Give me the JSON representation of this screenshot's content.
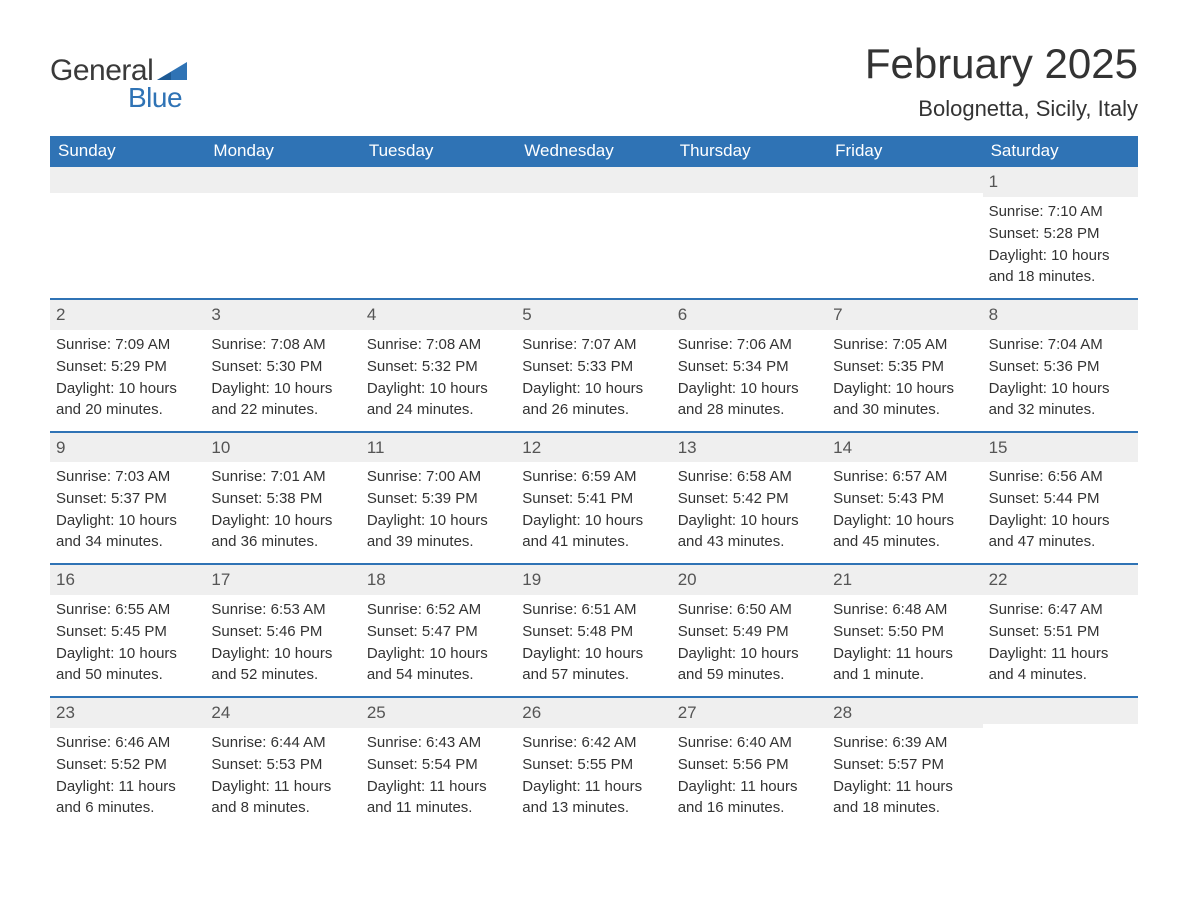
{
  "logo": {
    "text_general": "General",
    "text_blue": "Blue",
    "flag_color": "#2f73b5"
  },
  "header": {
    "month_title": "February 2025",
    "location": "Bolognetta, Sicily, Italy"
  },
  "colors": {
    "header_bg": "#2f73b5",
    "header_text": "#ffffff",
    "daynum_bg": "#efefef",
    "body_text": "#333333",
    "row_border": "#2f73b5"
  },
  "weekdays": [
    "Sunday",
    "Monday",
    "Tuesday",
    "Wednesday",
    "Thursday",
    "Friday",
    "Saturday"
  ],
  "sunrise_label": "Sunrise:",
  "sunset_label": "Sunset:",
  "daylight_label": "Daylight:",
  "weeks": [
    [
      {
        "empty": true
      },
      {
        "empty": true
      },
      {
        "empty": true
      },
      {
        "empty": true
      },
      {
        "empty": true
      },
      {
        "empty": true
      },
      {
        "day": "1",
        "sunrise": "7:10 AM",
        "sunset": "5:28 PM",
        "daylight": "10 hours and 18 minutes."
      }
    ],
    [
      {
        "day": "2",
        "sunrise": "7:09 AM",
        "sunset": "5:29 PM",
        "daylight": "10 hours and 20 minutes."
      },
      {
        "day": "3",
        "sunrise": "7:08 AM",
        "sunset": "5:30 PM",
        "daylight": "10 hours and 22 minutes."
      },
      {
        "day": "4",
        "sunrise": "7:08 AM",
        "sunset": "5:32 PM",
        "daylight": "10 hours and 24 minutes."
      },
      {
        "day": "5",
        "sunrise": "7:07 AM",
        "sunset": "5:33 PM",
        "daylight": "10 hours and 26 minutes."
      },
      {
        "day": "6",
        "sunrise": "7:06 AM",
        "sunset": "5:34 PM",
        "daylight": "10 hours and 28 minutes."
      },
      {
        "day": "7",
        "sunrise": "7:05 AM",
        "sunset": "5:35 PM",
        "daylight": "10 hours and 30 minutes."
      },
      {
        "day": "8",
        "sunrise": "7:04 AM",
        "sunset": "5:36 PM",
        "daylight": "10 hours and 32 minutes."
      }
    ],
    [
      {
        "day": "9",
        "sunrise": "7:03 AM",
        "sunset": "5:37 PM",
        "daylight": "10 hours and 34 minutes."
      },
      {
        "day": "10",
        "sunrise": "7:01 AM",
        "sunset": "5:38 PM",
        "daylight": "10 hours and 36 minutes."
      },
      {
        "day": "11",
        "sunrise": "7:00 AM",
        "sunset": "5:39 PM",
        "daylight": "10 hours and 39 minutes."
      },
      {
        "day": "12",
        "sunrise": "6:59 AM",
        "sunset": "5:41 PM",
        "daylight": "10 hours and 41 minutes."
      },
      {
        "day": "13",
        "sunrise": "6:58 AM",
        "sunset": "5:42 PM",
        "daylight": "10 hours and 43 minutes."
      },
      {
        "day": "14",
        "sunrise": "6:57 AM",
        "sunset": "5:43 PM",
        "daylight": "10 hours and 45 minutes."
      },
      {
        "day": "15",
        "sunrise": "6:56 AM",
        "sunset": "5:44 PM",
        "daylight": "10 hours and 47 minutes."
      }
    ],
    [
      {
        "day": "16",
        "sunrise": "6:55 AM",
        "sunset": "5:45 PM",
        "daylight": "10 hours and 50 minutes."
      },
      {
        "day": "17",
        "sunrise": "6:53 AM",
        "sunset": "5:46 PM",
        "daylight": "10 hours and 52 minutes."
      },
      {
        "day": "18",
        "sunrise": "6:52 AM",
        "sunset": "5:47 PM",
        "daylight": "10 hours and 54 minutes."
      },
      {
        "day": "19",
        "sunrise": "6:51 AM",
        "sunset": "5:48 PM",
        "daylight": "10 hours and 57 minutes."
      },
      {
        "day": "20",
        "sunrise": "6:50 AM",
        "sunset": "5:49 PM",
        "daylight": "10 hours and 59 minutes."
      },
      {
        "day": "21",
        "sunrise": "6:48 AM",
        "sunset": "5:50 PM",
        "daylight": "11 hours and 1 minute."
      },
      {
        "day": "22",
        "sunrise": "6:47 AM",
        "sunset": "5:51 PM",
        "daylight": "11 hours and 4 minutes."
      }
    ],
    [
      {
        "day": "23",
        "sunrise": "6:46 AM",
        "sunset": "5:52 PM",
        "daylight": "11 hours and 6 minutes."
      },
      {
        "day": "24",
        "sunrise": "6:44 AM",
        "sunset": "5:53 PM",
        "daylight": "11 hours and 8 minutes."
      },
      {
        "day": "25",
        "sunrise": "6:43 AM",
        "sunset": "5:54 PM",
        "daylight": "11 hours and 11 minutes."
      },
      {
        "day": "26",
        "sunrise": "6:42 AM",
        "sunset": "5:55 PM",
        "daylight": "11 hours and 13 minutes."
      },
      {
        "day": "27",
        "sunrise": "6:40 AM",
        "sunset": "5:56 PM",
        "daylight": "11 hours and 16 minutes."
      },
      {
        "day": "28",
        "sunrise": "6:39 AM",
        "sunset": "5:57 PM",
        "daylight": "11 hours and 18 minutes."
      },
      {
        "empty": true
      }
    ]
  ]
}
